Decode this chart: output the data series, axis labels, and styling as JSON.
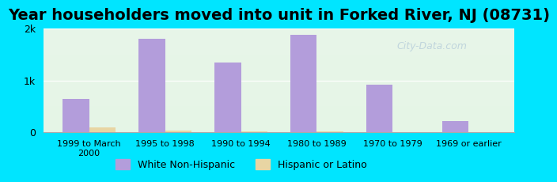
{
  "title": "Year householders moved into unit in Forked River, NJ (08731)",
  "categories": [
    "1999 to March\n2000",
    "1995 to 1998",
    "1990 to 1994",
    "1980 to 1989",
    "1970 to 1979",
    "1969 or earlier"
  ],
  "white_non_hispanic": [
    650,
    1800,
    1350,
    1880,
    920,
    220
  ],
  "hispanic_or_latino": [
    90,
    30,
    15,
    20,
    10,
    0
  ],
  "bar_color_white": "#b39ddb",
  "bar_color_hispanic": "#e8d5a3",
  "background_outer": "#00e5ff",
  "background_plot_top": "#e8f5e9",
  "background_plot_bottom": "#f0f4e8",
  "ylim": [
    0,
    2000
  ],
  "yticks": [
    0,
    1000,
    2000
  ],
  "ytick_labels": [
    "0",
    "1k",
    "2k"
  ],
  "title_fontsize": 14,
  "bar_width": 0.35,
  "legend_labels": [
    "White Non-Hispanic",
    "Hispanic or Latino"
  ]
}
